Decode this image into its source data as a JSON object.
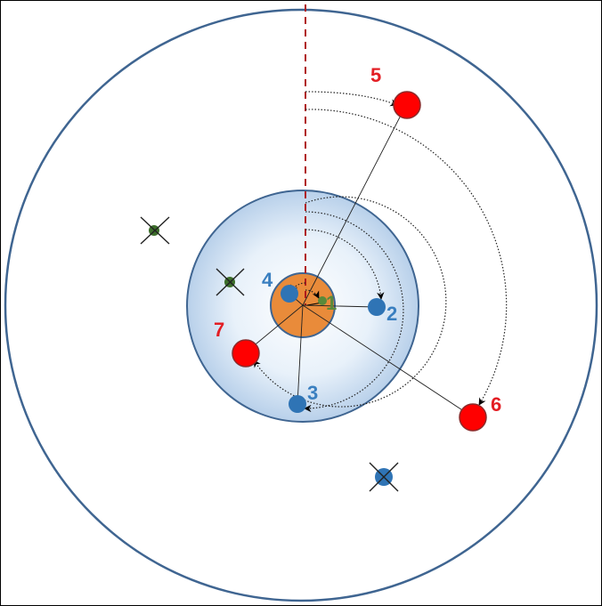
{
  "diagram": {
    "colors": {
      "outer_ring": "#3f6591",
      "inner_fill_edge": "#b8d0ea",
      "core_fill": "#e98b3a",
      "blue_node": "#2f74b5",
      "red_node": "#ff0000",
      "crossed_green": "#3c6e2a",
      "axis_dash": "#b01b1b"
    },
    "labels": {
      "n1": "1",
      "n2": "2",
      "n3": "3",
      "n4": "4",
      "n5": "5",
      "n6": "6",
      "n7": "7"
    }
  }
}
